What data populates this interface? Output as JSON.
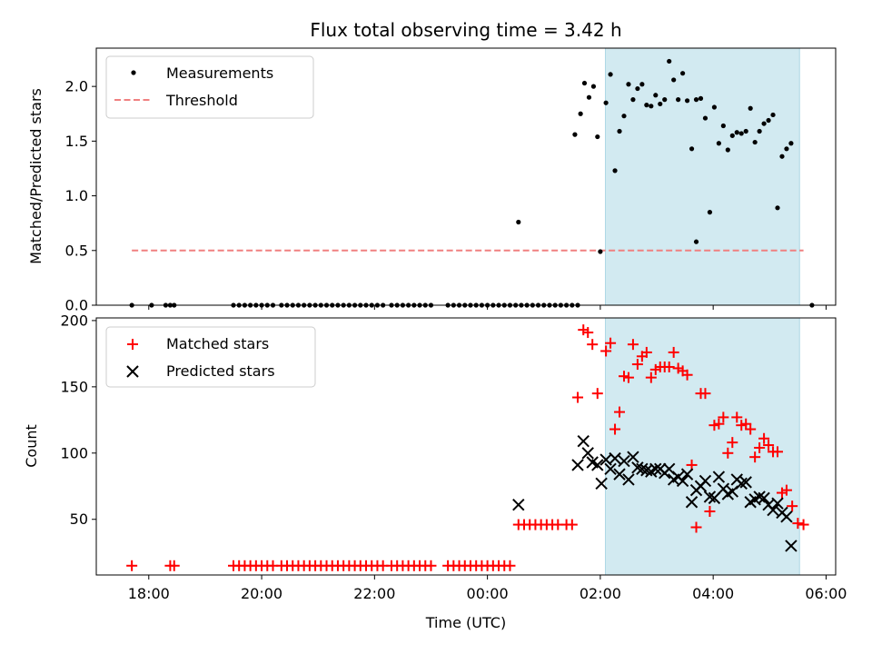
{
  "colors": {
    "measurement": "#000000",
    "threshold": "#f08080",
    "matched": "#ff0000",
    "predicted": "#000000",
    "span_fill": "#add8e6"
  },
  "chart_data": {
    "type": "scatter",
    "title": "Flux total observing time = 3.42 h",
    "xlabel": "Time (UTC)",
    "x_unit": "hours since 18:00 UTC",
    "xlim": [
      -0.93,
      12.17
    ],
    "xticks": [
      {
        "v": 0,
        "label": "18:00"
      },
      {
        "v": 2,
        "label": "20:00"
      },
      {
        "v": 4,
        "label": "22:00"
      },
      {
        "v": 6,
        "label": "00:00"
      },
      {
        "v": 8,
        "label": "02:00"
      },
      {
        "v": 10,
        "label": "04:00"
      },
      {
        "v": 12,
        "label": "06:00"
      }
    ],
    "highlight_span": [
      8.09,
      11.53
    ],
    "top": {
      "ylabel": "Matched/Predicted stars",
      "ylim": [
        0,
        2.35
      ],
      "yticks": [
        {
          "v": 0,
          "label": "0.0"
        },
        {
          "v": 0.5,
          "label": "0.5"
        },
        {
          "v": 1.0,
          "label": "1.0"
        },
        {
          "v": 1.5,
          "label": "1.5"
        },
        {
          "v": 2.0,
          "label": "2.0"
        }
      ],
      "legend": {
        "measurements": "Measurements",
        "threshold": "Threshold"
      },
      "threshold": {
        "value": 0.5,
        "x_range": [
          -0.3,
          11.6
        ]
      },
      "measurements": [
        [
          -0.3,
          0
        ],
        [
          0.05,
          0
        ],
        [
          0.3,
          0
        ],
        [
          0.38,
          0
        ],
        [
          0.45,
          0
        ],
        [
          1.5,
          0
        ],
        [
          1.6,
          0
        ],
        [
          1.7,
          0
        ],
        [
          1.8,
          0
        ],
        [
          1.9,
          0
        ],
        [
          2.0,
          0
        ],
        [
          2.1,
          0
        ],
        [
          2.2,
          0
        ],
        [
          2.35,
          0
        ],
        [
          2.45,
          0
        ],
        [
          2.55,
          0
        ],
        [
          2.65,
          0
        ],
        [
          2.75,
          0
        ],
        [
          2.85,
          0
        ],
        [
          2.95,
          0
        ],
        [
          3.05,
          0
        ],
        [
          3.15,
          0
        ],
        [
          3.25,
          0
        ],
        [
          3.35,
          0
        ],
        [
          3.45,
          0
        ],
        [
          3.55,
          0
        ],
        [
          3.65,
          0
        ],
        [
          3.75,
          0
        ],
        [
          3.85,
          0
        ],
        [
          3.95,
          0
        ],
        [
          4.05,
          0
        ],
        [
          4.15,
          0
        ],
        [
          4.3,
          0
        ],
        [
          4.4,
          0
        ],
        [
          4.5,
          0
        ],
        [
          4.6,
          0
        ],
        [
          4.7,
          0
        ],
        [
          4.8,
          0
        ],
        [
          4.9,
          0
        ],
        [
          5.0,
          0
        ],
        [
          5.3,
          0
        ],
        [
          5.4,
          0
        ],
        [
          5.5,
          0
        ],
        [
          5.6,
          0
        ],
        [
          5.7,
          0
        ],
        [
          5.8,
          0
        ],
        [
          5.9,
          0
        ],
        [
          6.0,
          0
        ],
        [
          6.1,
          0
        ],
        [
          6.2,
          0
        ],
        [
          6.3,
          0
        ],
        [
          6.4,
          0
        ],
        [
          6.5,
          0
        ],
        [
          6.6,
          0
        ],
        [
          6.7,
          0
        ],
        [
          6.8,
          0
        ],
        [
          6.9,
          0
        ],
        [
          7.0,
          0
        ],
        [
          7.1,
          0
        ],
        [
          7.2,
          0
        ],
        [
          7.3,
          0
        ],
        [
          7.4,
          0
        ],
        [
          7.5,
          0
        ],
        [
          7.6,
          0
        ],
        [
          11.75,
          0
        ],
        [
          6.55,
          0.76
        ],
        [
          8.0,
          0.49
        ],
        [
          7.55,
          1.56
        ],
        [
          7.65,
          1.75
        ],
        [
          7.72,
          2.03
        ],
        [
          7.8,
          1.9
        ],
        [
          7.88,
          2.0
        ],
        [
          7.95,
          1.54
        ],
        [
          8.1,
          1.85
        ],
        [
          8.18,
          2.11
        ],
        [
          8.26,
          1.23
        ],
        [
          8.34,
          1.59
        ],
        [
          8.42,
          1.73
        ],
        [
          8.5,
          2.02
        ],
        [
          8.58,
          1.88
        ],
        [
          8.66,
          1.98
        ],
        [
          8.74,
          2.02
        ],
        [
          8.82,
          1.83
        ],
        [
          8.9,
          1.82
        ],
        [
          8.98,
          1.92
        ],
        [
          9.06,
          1.84
        ],
        [
          9.14,
          1.88
        ],
        [
          9.22,
          2.23
        ],
        [
          9.3,
          2.06
        ],
        [
          9.38,
          1.88
        ],
        [
          9.46,
          2.12
        ],
        [
          9.54,
          1.87
        ],
        [
          9.62,
          1.43
        ],
        [
          9.7,
          1.88
        ],
        [
          9.78,
          1.89
        ],
        [
          9.86,
          1.71
        ],
        [
          9.94,
          0.85
        ],
        [
          10.02,
          1.81
        ],
        [
          10.1,
          1.48
        ],
        [
          10.18,
          1.64
        ],
        [
          10.26,
          1.42
        ],
        [
          10.34,
          1.55
        ],
        [
          10.42,
          1.58
        ],
        [
          10.5,
          1.57
        ],
        [
          10.58,
          1.59
        ],
        [
          10.66,
          1.8
        ],
        [
          10.74,
          1.49
        ],
        [
          10.82,
          1.59
        ],
        [
          10.9,
          1.66
        ],
        [
          10.98,
          1.69
        ],
        [
          11.06,
          1.74
        ],
        [
          11.14,
          0.89
        ],
        [
          11.22,
          1.36
        ],
        [
          11.3,
          1.43
        ],
        [
          11.38,
          1.48
        ],
        [
          9.7,
          0.58
        ]
      ]
    },
    "bottom": {
      "ylabel": "Count",
      "ylim": [
        8,
        202
      ],
      "yticks": [
        {
          "v": 50,
          "label": "50"
        },
        {
          "v": 100,
          "label": "100"
        },
        {
          "v": 150,
          "label": "150"
        },
        {
          "v": 200,
          "label": "200"
        }
      ],
      "legend": {
        "matched": "Matched stars",
        "predicted": "Predicted stars"
      },
      "matched": [
        [
          -0.3,
          15
        ],
        [
          0.38,
          15
        ],
        [
          0.45,
          15
        ],
        [
          1.5,
          15
        ],
        [
          1.6,
          15
        ],
        [
          1.7,
          15
        ],
        [
          1.8,
          15
        ],
        [
          1.9,
          15
        ],
        [
          2.0,
          15
        ],
        [
          2.1,
          15
        ],
        [
          2.2,
          15
        ],
        [
          2.35,
          15
        ],
        [
          2.45,
          15
        ],
        [
          2.55,
          15
        ],
        [
          2.65,
          15
        ],
        [
          2.75,
          15
        ],
        [
          2.85,
          15
        ],
        [
          2.95,
          15
        ],
        [
          3.05,
          15
        ],
        [
          3.15,
          15
        ],
        [
          3.25,
          15
        ],
        [
          3.35,
          15
        ],
        [
          3.45,
          15
        ],
        [
          3.55,
          15
        ],
        [
          3.65,
          15
        ],
        [
          3.75,
          15
        ],
        [
          3.85,
          15
        ],
        [
          3.95,
          15
        ],
        [
          4.05,
          15
        ],
        [
          4.15,
          15
        ],
        [
          4.3,
          15
        ],
        [
          4.4,
          15
        ],
        [
          4.5,
          15
        ],
        [
          4.6,
          15
        ],
        [
          4.7,
          15
        ],
        [
          4.8,
          15
        ],
        [
          4.9,
          15
        ],
        [
          5.0,
          15
        ],
        [
          5.3,
          15
        ],
        [
          5.4,
          15
        ],
        [
          5.5,
          15
        ],
        [
          5.6,
          15
        ],
        [
          5.7,
          15
        ],
        [
          5.8,
          15
        ],
        [
          5.9,
          15
        ],
        [
          6.0,
          15
        ],
        [
          6.1,
          15
        ],
        [
          6.2,
          15
        ],
        [
          6.3,
          15
        ],
        [
          6.4,
          15
        ],
        [
          6.55,
          46
        ],
        [
          6.65,
          46
        ],
        [
          6.75,
          46
        ],
        [
          6.85,
          46
        ],
        [
          6.95,
          46
        ],
        [
          7.05,
          46
        ],
        [
          7.15,
          46
        ],
        [
          7.25,
          46
        ],
        [
          7.4,
          46
        ],
        [
          7.5,
          46
        ],
        [
          7.6,
          142
        ],
        [
          7.7,
          193
        ],
        [
          7.78,
          191
        ],
        [
          7.86,
          182
        ],
        [
          7.95,
          145
        ],
        [
          8.1,
          177
        ],
        [
          8.18,
          183
        ],
        [
          8.26,
          118
        ],
        [
          8.34,
          131
        ],
        [
          8.42,
          158
        ],
        [
          8.5,
          157
        ],
        [
          8.58,
          182
        ],
        [
          8.66,
          167
        ],
        [
          8.74,
          173
        ],
        [
          8.82,
          176
        ],
        [
          8.9,
          157
        ],
        [
          8.98,
          163
        ],
        [
          9.06,
          165
        ],
        [
          9.14,
          165
        ],
        [
          9.22,
          165
        ],
        [
          9.3,
          176
        ],
        [
          9.38,
          164
        ],
        [
          9.46,
          162
        ],
        [
          9.54,
          159
        ],
        [
          9.62,
          91
        ],
        [
          9.7,
          44
        ],
        [
          9.78,
          145
        ],
        [
          9.86,
          145
        ],
        [
          9.94,
          56
        ],
        [
          10.02,
          121
        ],
        [
          10.1,
          122
        ],
        [
          10.18,
          127
        ],
        [
          10.26,
          100
        ],
        [
          10.34,
          108
        ],
        [
          10.42,
          127
        ],
        [
          10.5,
          121
        ],
        [
          10.58,
          122
        ],
        [
          10.66,
          118
        ],
        [
          10.74,
          97
        ],
        [
          10.82,
          104
        ],
        [
          10.9,
          111
        ],
        [
          10.98,
          106
        ],
        [
          11.06,
          101
        ],
        [
          11.14,
          101
        ],
        [
          11.22,
          70
        ],
        [
          11.3,
          72
        ],
        [
          11.4,
          60
        ],
        [
          11.5,
          47
        ],
        [
          11.6,
          46
        ]
      ],
      "predicted": [
        [
          6.55,
          61
        ],
        [
          7.6,
          91
        ],
        [
          7.7,
          109
        ],
        [
          7.78,
          100
        ],
        [
          7.86,
          93
        ],
        [
          7.95,
          91
        ],
        [
          8.02,
          77
        ],
        [
          8.1,
          95
        ],
        [
          8.18,
          88
        ],
        [
          8.26,
          96
        ],
        [
          8.34,
          84
        ],
        [
          8.42,
          94
        ],
        [
          8.5,
          80
        ],
        [
          8.58,
          97
        ],
        [
          8.66,
          89
        ],
        [
          8.74,
          88
        ],
        [
          8.82,
          87
        ],
        [
          8.9,
          86
        ],
        [
          8.98,
          88
        ],
        [
          9.06,
          88
        ],
        [
          9.14,
          85
        ],
        [
          9.22,
          88
        ],
        [
          9.3,
          80
        ],
        [
          9.38,
          82
        ],
        [
          9.46,
          79
        ],
        [
          9.54,
          84
        ],
        [
          9.62,
          63
        ],
        [
          9.7,
          72
        ],
        [
          9.78,
          75
        ],
        [
          9.86,
          79
        ],
        [
          9.94,
          67
        ],
        [
          10.02,
          66
        ],
        [
          10.1,
          82
        ],
        [
          10.18,
          73
        ],
        [
          10.26,
          69
        ],
        [
          10.34,
          71
        ],
        [
          10.42,
          80
        ],
        [
          10.5,
          77
        ],
        [
          10.58,
          78
        ],
        [
          10.66,
          63
        ],
        [
          10.74,
          65
        ],
        [
          10.82,
          67
        ],
        [
          10.9,
          66
        ],
        [
          10.98,
          61
        ],
        [
          11.06,
          57
        ],
        [
          11.14,
          62
        ],
        [
          11.22,
          55
        ],
        [
          11.3,
          52
        ],
        [
          11.38,
          30
        ]
      ]
    }
  }
}
